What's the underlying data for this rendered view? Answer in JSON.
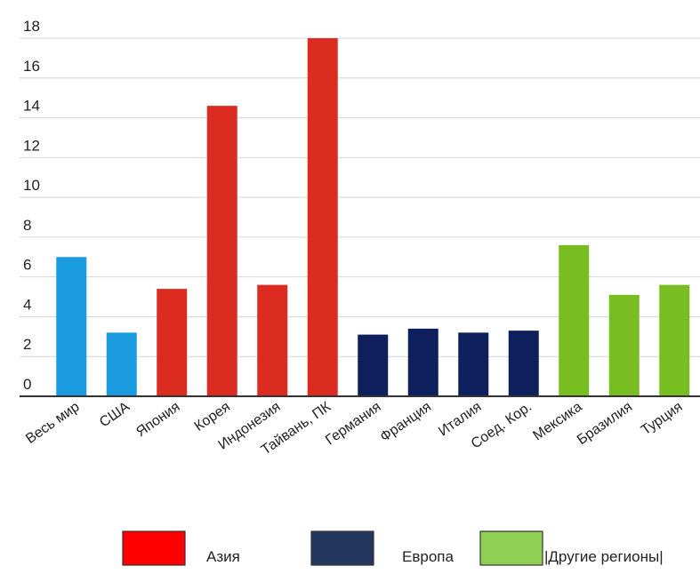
{
  "chart_data": {
    "type": "bar",
    "title": "",
    "xlabel": "",
    "ylabel": "",
    "ylim": [
      0,
      18
    ],
    "yticks": [
      0,
      2,
      4,
      6,
      8,
      10,
      12,
      14,
      16,
      18
    ],
    "grid": true,
    "legend_placement": "bottom",
    "categories": [
      "Весь мир",
      "США",
      "Япония",
      "Корея",
      "Индонезия",
      "Тайвань, ПК",
      "Германия",
      "Франция",
      "Италия",
      "Соед. Кор.",
      "Мексика",
      "Бразилия",
      "Турция"
    ],
    "values": [
      7.0,
      3.2,
      5.4,
      14.6,
      5.6,
      18.0,
      3.1,
      3.4,
      3.2,
      3.3,
      7.6,
      5.1,
      5.6
    ],
    "bar_colors": [
      "#1a9be0",
      "#1a9be0",
      "#dc2c22",
      "#dc2c22",
      "#dc2c22",
      "#dc2c22",
      "#0d1f5c",
      "#0d1f5c",
      "#0d1f5c",
      "#0d1f5c",
      "#78be23",
      "#78be23",
      "#78be23"
    ],
    "legend": [
      {
        "label": "Азия",
        "color": "#ff0000"
      },
      {
        "label": "Европа",
        "color": "#22365e"
      },
      {
        "label": "|Другие регионы|",
        "color": "#8fd155"
      }
    ]
  }
}
